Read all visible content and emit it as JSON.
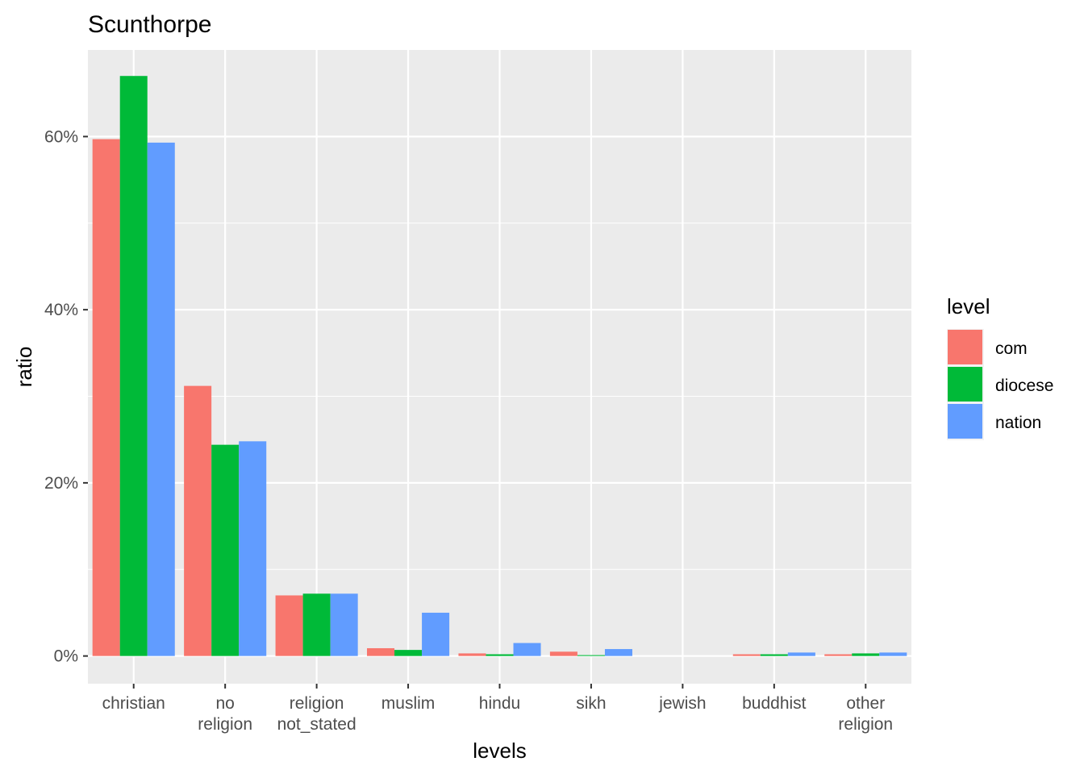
{
  "chart_data": {
    "type": "bar",
    "title": "Scunthorpe",
    "xlabel": "levels",
    "ylabel": "ratio",
    "categories": [
      [
        "christian"
      ],
      [
        "no",
        "religion"
      ],
      [
        "religion",
        "not_stated"
      ],
      [
        "muslim"
      ],
      [
        "hindu"
      ],
      [
        "sikh"
      ],
      [
        "jewish"
      ],
      [
        "buddhist"
      ],
      [
        "other",
        "religion"
      ]
    ],
    "legend": {
      "title": "level",
      "position": "right"
    },
    "series": [
      {
        "name": "com",
        "color": "#F8766D",
        "values": [
          59.7,
          31.2,
          7.0,
          0.9,
          0.3,
          0.5,
          0.0,
          0.2,
          0.2
        ]
      },
      {
        "name": "diocese",
        "color": "#00BA38",
        "values": [
          67.0,
          24.4,
          7.2,
          0.7,
          0.2,
          0.1,
          0.0,
          0.2,
          0.3
        ]
      },
      {
        "name": "nation",
        "color": "#619CFF",
        "values": [
          59.3,
          24.8,
          7.2,
          5.0,
          1.5,
          0.8,
          0.0,
          0.4,
          0.4
        ]
      }
    ],
    "ylim": [
      -3.2,
      70.0
    ],
    "yticks": [
      0,
      20,
      40,
      60
    ],
    "ytick_labels": [
      "0%",
      "20%",
      "40%",
      "60%"
    ],
    "grid": true,
    "panel_background": "#EBEBEB"
  }
}
